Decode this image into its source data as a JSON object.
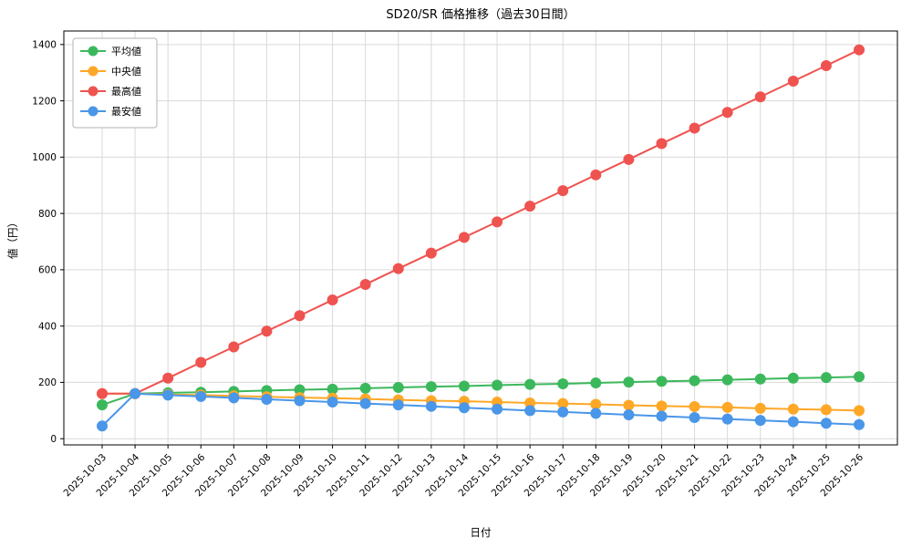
{
  "chart_data": {
    "type": "line",
    "title": "SD20/SR 価格推移（過去30日間）",
    "xlabel": "日付",
    "ylabel": "値（円）",
    "ylim": [
      0,
      1400
    ],
    "yticks": [
      0,
      200,
      400,
      600,
      800,
      1000,
      1200,
      1400
    ],
    "grid": true,
    "legend_position": "upper left",
    "categories": [
      "2025-10-03",
      "2025-10-04",
      "2025-10-05",
      "2025-10-06",
      "2025-10-07",
      "2025-10-08",
      "2025-10-09",
      "2025-10-10",
      "2025-10-11",
      "2025-10-12",
      "2025-10-13",
      "2025-10-14",
      "2025-10-15",
      "2025-10-16",
      "2025-10-17",
      "2025-10-18",
      "2025-10-19",
      "2025-10-20",
      "2025-10-21",
      "2025-10-22",
      "2025-10-23",
      "2025-10-24",
      "2025-10-25",
      "2025-10-26"
    ],
    "series": [
      {
        "name": "平均値",
        "color": "#3cb85c",
        "values": [
          120,
          160,
          163,
          165,
          168,
          171,
          174,
          176,
          179,
          182,
          185,
          187,
          190,
          193,
          195,
          198,
          201,
          204,
          206,
          209,
          212,
          215,
          217,
          220
        ]
      },
      {
        "name": "中央値",
        "color": "#ffa726",
        "values": [
          160,
          160,
          157,
          155,
          152,
          149,
          146,
          144,
          141,
          138,
          135,
          133,
          130,
          127,
          125,
          122,
          119,
          116,
          114,
          111,
          108,
          105,
          103,
          100
        ]
      },
      {
        "name": "最高値",
        "color": "#ef5350",
        "values": [
          160,
          160,
          215,
          271,
          326,
          382,
          437,
          493,
          548,
          604,
          659,
          715,
          770,
          826,
          881,
          937,
          992,
          1048,
          1103,
          1159,
          1214,
          1270,
          1325,
          1381
        ]
      },
      {
        "name": "最安値",
        "color": "#4a96e8",
        "values": [
          45,
          160,
          155,
          150,
          145,
          140,
          135,
          130,
          125,
          120,
          115,
          110,
          105,
          100,
          95,
          90,
          85,
          80,
          75,
          70,
          65,
          60,
          55,
          50
        ]
      }
    ]
  }
}
